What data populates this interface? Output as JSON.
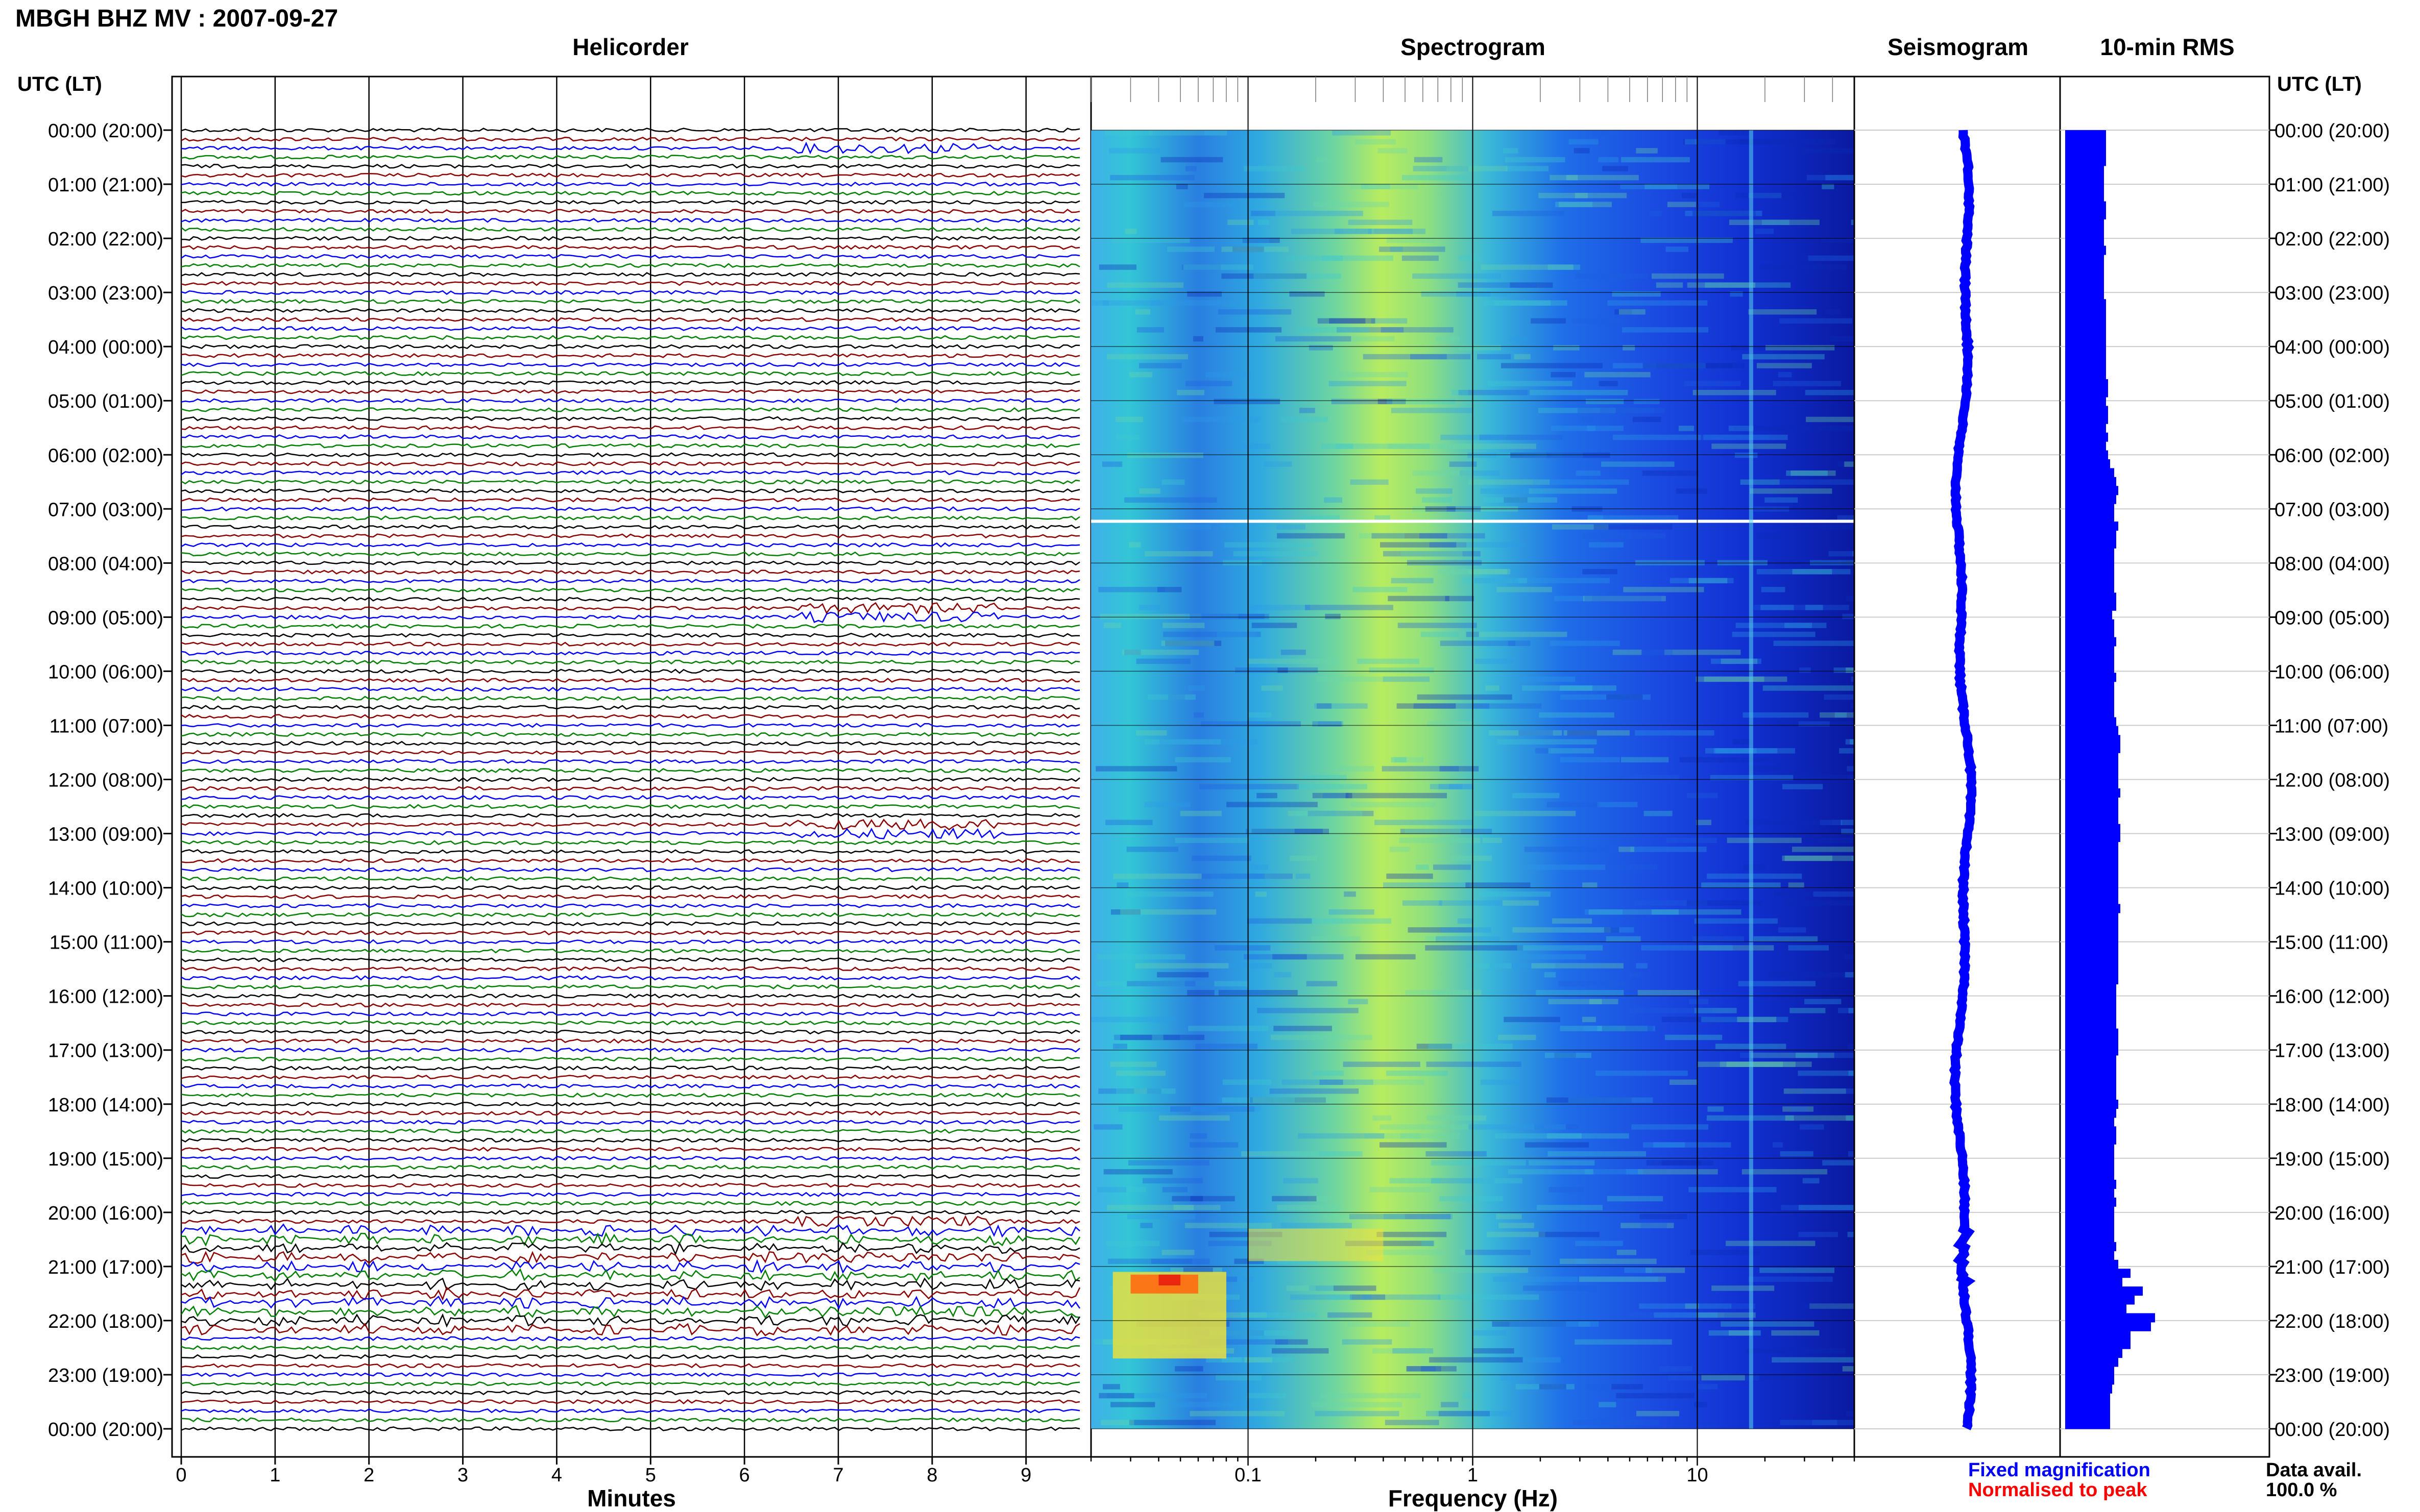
{
  "title": "MBGH BHZ MV : 2007-09-27",
  "time_label_left": "UTC (LT)",
  "time_label_right": "UTC (LT)",
  "panels": {
    "helicorder": "Helicorder",
    "spectrogram": "Spectrogram",
    "seismogram": "Seismogram",
    "rms": "10-min RMS"
  },
  "x_labels": {
    "helicorder": "Minutes",
    "spectrogram": "Frequency (Hz)"
  },
  "legend": {
    "fixed": "Fixed magnification",
    "fixed_color": "#0000ff",
    "normalised": "Normalised to peak",
    "normalised_color": "#ff0000"
  },
  "data_avail": {
    "label": "Data avail.",
    "value": "100.0 %"
  },
  "colors": {
    "trace_cycle": [
      "#000000",
      "#8b0000",
      "#0000ff",
      "#008000"
    ],
    "rms_bar": "#0000ff",
    "seismogram": "#0000ff"
  },
  "chart_data": {
    "type": "heatmap",
    "time_ticks": [
      "00:00 (20:00)",
      "01:00 (21:00)",
      "02:00 (22:00)",
      "03:00 (23:00)",
      "04:00 (00:00)",
      "05:00 (01:00)",
      "06:00 (02:00)",
      "07:00 (03:00)",
      "08:00 (04:00)",
      "09:00 (05:00)",
      "10:00 (06:00)",
      "11:00 (07:00)",
      "12:00 (08:00)",
      "13:00 (09:00)",
      "14:00 (10:00)",
      "15:00 (11:00)",
      "16:00 (12:00)",
      "17:00 (13:00)",
      "18:00 (14:00)",
      "19:00 (15:00)",
      "20:00 (16:00)",
      "21:00 (17:00)",
      "22:00 (18:00)",
      "23:00 (19:00)",
      "00:00 (20:00)"
    ],
    "helicorder": {
      "x_ticks": [
        "0",
        "1",
        "2",
        "3",
        "4",
        "5",
        "6",
        "7",
        "8",
        "9"
      ],
      "xlim": [
        0,
        10
      ],
      "rows_per_hour": 6,
      "event_hours": [
        0.3,
        8.9,
        12.9,
        20.2,
        20.8,
        21.8
      ]
    },
    "spectrogram": {
      "x_ticks": [
        "0.1",
        "1",
        "10"
      ],
      "xlim": [
        0.02,
        50
      ],
      "xscale": "log"
    },
    "rms": {
      "unit_time": "10-min",
      "values": [
        1.0,
        1.0,
        1.0,
        1.0,
        0.95,
        0.95,
        0.95,
        0.95,
        1.0,
        1.0,
        0.95,
        0.95,
        0.95,
        1.0,
        0.95,
        0.95,
        0.95,
        0.95,
        0.95,
        1.0,
        1.0,
        1.0,
        1.0,
        1.0,
        1.0,
        1.0,
        1.0,
        1.0,
        1.05,
        1.05,
        1.0,
        1.05,
        1.05,
        1.0,
        1.05,
        1.0,
        1.05,
        1.1,
        1.2,
        1.25,
        1.3,
        1.25,
        1.2,
        1.2,
        1.3,
        1.25,
        1.25,
        1.2,
        1.2,
        1.2,
        1.2,
        1.2,
        1.25,
        1.25,
        1.15,
        1.2,
        1.2,
        1.25,
        1.2,
        1.2,
        1.2,
        1.25,
        1.2,
        1.2,
        1.2,
        1.2,
        1.25,
        1.3,
        1.35,
        1.35,
        1.3,
        1.3,
        1.3,
        1.3,
        1.35,
        1.3,
        1.3,
        1.3,
        1.35,
        1.35,
        1.3,
        1.3,
        1.3,
        1.3,
        1.3,
        1.3,
        1.3,
        1.35,
        1.3,
        1.3,
        1.3,
        1.3,
        1.3,
        1.3,
        1.3,
        1.3,
        1.25,
        1.25,
        1.25,
        1.25,
        1.25,
        1.3,
        1.3,
        1.3,
        1.25,
        1.25,
        1.25,
        1.25,
        1.25,
        1.3,
        1.25,
        1.2,
        1.25,
        1.25,
        1.2,
        1.2,
        1.2,
        1.2,
        1.25,
        1.2,
        1.25,
        1.2,
        1.2,
        1.2,
        1.2,
        1.25,
        1.2,
        1.3,
        1.6,
        1.4,
        1.9,
        1.7,
        1.5,
        2.2,
        2.1,
        1.6,
        1.6,
        1.4,
        1.3,
        1.2,
        1.2,
        1.15,
        1.1,
        1.1,
        1.1,
        1.1
      ]
    }
  }
}
